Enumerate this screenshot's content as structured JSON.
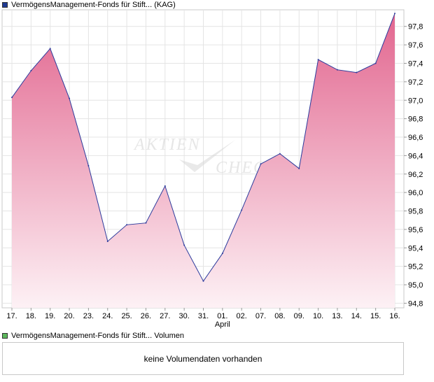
{
  "legend": {
    "price_label": "VermögensManagement-Fonds für Stift...  (KAG)",
    "volume_label": "VermögensManagement-Fonds für Stift...  Volumen",
    "price_color": "#1f3a93",
    "volume_color": "#5cb85c"
  },
  "volume_panel": {
    "message": "keine Volumendaten vorhanden"
  },
  "watermark": {
    "line1": "AKTIEN",
    "line2": "CHECK"
  },
  "chart_data": {
    "type": "area",
    "x": [
      "17.",
      "18.",
      "19.",
      "20.",
      "23.",
      "24.",
      "25.",
      "26.",
      "27.",
      "30.",
      "31.",
      "01.",
      "02.",
      "07.",
      "08.",
      "09.",
      "10.",
      "13.",
      "14.",
      "15.",
      "16."
    ],
    "x_month_label": {
      "at": "01.",
      "text": "April"
    },
    "series": [
      {
        "values": [
          97.03,
          97.32,
          97.56,
          97.02,
          96.29,
          95.47,
          95.65,
          95.67,
          96.07,
          95.43,
          95.04,
          95.34,
          95.81,
          96.31,
          96.42,
          96.26,
          97.44,
          97.33,
          97.3,
          97.4,
          97.94
        ]
      }
    ],
    "ylim": [
      94.75,
      97.98
    ],
    "y_ticks": [
      "94,8",
      "95,0",
      "95,2",
      "95,4",
      "95,6",
      "95,8",
      "96,0",
      "96,2",
      "96,4",
      "96,6",
      "96,8",
      "97,0",
      "97,2",
      "97,4",
      "97,6",
      "97,8"
    ],
    "grid": true,
    "line_color": "#2b3a9c",
    "fill_top_color": "#e2668f",
    "fill_bottom_color": "#fdf1f5"
  }
}
